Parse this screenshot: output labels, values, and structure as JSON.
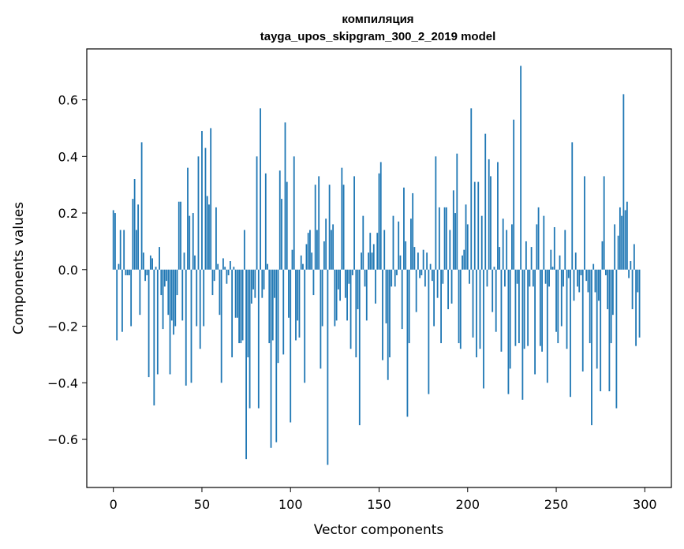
{
  "chart_data": {
    "type": "bar",
    "title": [
      "компиляция",
      "tayga_upos_skipgram_300_2_2019 model"
    ],
    "xlabel": "Vector components",
    "ylabel": "Components values",
    "xlim": [
      -15,
      315
    ],
    "ylim": [
      -0.77,
      0.78
    ],
    "xticks": [
      0,
      50,
      100,
      150,
      200,
      250,
      300
    ],
    "yticks": [
      -0.6,
      -0.4,
      -0.2,
      0.0,
      0.2,
      0.4,
      0.6
    ],
    "ytick_labels": [
      "−0.6",
      "−0.4",
      "−0.2",
      "0.0",
      "0.2",
      "0.4",
      "0.6"
    ],
    "bar_color": "#1f77b4",
    "grid": false,
    "values": [
      0.21,
      0.2,
      -0.25,
      0.02,
      0.14,
      -0.22,
      0.14,
      -0.02,
      -0.02,
      -0.02,
      -0.2,
      0.25,
      0.32,
      0.14,
      0.23,
      -0.16,
      0.45,
      0.06,
      -0.04,
      -0.02,
      -0.38,
      0.05,
      0.04,
      -0.48,
      0.01,
      -0.37,
      0.08,
      -0.09,
      -0.21,
      -0.06,
      -0.04,
      -0.16,
      -0.37,
      -0.18,
      -0.23,
      -0.2,
      -0.09,
      0.24,
      0.24,
      -0.18,
      0.06,
      -0.41,
      0.36,
      0.19,
      -0.4,
      0.2,
      0.05,
      -0.2,
      0.4,
      -0.28,
      0.49,
      -0.2,
      0.43,
      0.26,
      0.23,
      0.5,
      -0.09,
      -0.04,
      0.22,
      0.02,
      -0.16,
      -0.4,
      0.04,
      0.01,
      -0.05,
      -0.02,
      0.03,
      -0.31,
      0.01,
      -0.17,
      -0.17,
      -0.26,
      -0.26,
      -0.25,
      0.14,
      -0.67,
      -0.31,
      -0.49,
      -0.12,
      -0.07,
      -0.1,
      0.4,
      -0.49,
      0.57,
      -0.1,
      -0.07,
      0.34,
      0.02,
      -0.26,
      -0.63,
      -0.25,
      -0.1,
      -0.61,
      -0.33,
      0.35,
      0.25,
      -0.3,
      0.52,
      0.31,
      -0.17,
      -0.54,
      0.07,
      0.4,
      -0.25,
      -0.18,
      -0.24,
      0.05,
      0.02,
      -0.4,
      0.09,
      0.13,
      0.14,
      0.06,
      -0.09,
      0.3,
      0.14,
      0.33,
      -0.35,
      -0.2,
      0.1,
      0.18,
      -0.69,
      0.3,
      0.14,
      0.16,
      -0.2,
      -0.18,
      -0.07,
      -0.11,
      0.36,
      0.3,
      -0.1,
      -0.18,
      -0.05,
      -0.28,
      -0.02,
      0.33,
      -0.31,
      -0.14,
      -0.55,
      0.06,
      0.19,
      -0.06,
      -0.18,
      0.06,
      0.13,
      0.06,
      0.09,
      -0.12,
      0.13,
      0.34,
      0.38,
      -0.32,
      0.14,
      -0.19,
      -0.39,
      -0.31,
      -0.06,
      0.19,
      -0.06,
      -0.02,
      0.17,
      0.05,
      -0.21,
      0.29,
      0.1,
      -0.52,
      -0.26,
      0.18,
      0.27,
      0.08,
      -0.15,
      0.06,
      -0.03,
      -0.02,
      0.07,
      -0.06,
      0.06,
      -0.44,
      0.02,
      -0.04,
      -0.2,
      0.4,
      -0.1,
      0.22,
      -0.26,
      -0.05,
      0.22,
      0.22,
      -0.14,
      0.14,
      -0.12,
      0.28,
      0.2,
      0.41,
      -0.26,
      -0.28,
      0.05,
      0.07,
      0.23,
      0.16,
      -0.05,
      0.57,
      -0.24,
      0.31,
      -0.31,
      0.31,
      -0.28,
      0.19,
      -0.42,
      0.48,
      -0.06,
      0.39,
      0.33,
      -0.15,
      0.01,
      -0.22,
      0.38,
      0.08,
      -0.29,
      0.18,
      -0.06,
      0.14,
      -0.44,
      -0.35,
      0.16,
      0.53,
      -0.27,
      -0.05,
      -0.26,
      0.72,
      -0.46,
      -0.28,
      0.1,
      -0.27,
      -0.06,
      0.08,
      -0.06,
      -0.37,
      0.16,
      0.22,
      -0.27,
      -0.29,
      0.19,
      -0.05,
      -0.4,
      -0.06,
      0.07,
      0.01,
      0.15,
      -0.22,
      -0.26,
      0.05,
      -0.2,
      -0.06,
      0.14,
      -0.28,
      -0.03,
      -0.45,
      0.45,
      -0.11,
      0.06,
      -0.06,
      -0.08,
      -0.02,
      -0.36,
      0.33,
      -0.04,
      -0.08,
      -0.26,
      -0.55,
      0.02,
      -0.08,
      -0.35,
      -0.11,
      -0.43,
      0.1,
      0.33,
      -0.02,
      -0.14,
      -0.43,
      -0.26,
      -0.16,
      0.16,
      -0.49,
      0.12,
      0.22,
      0.19,
      0.62,
      0.21,
      0.24,
      -0.03,
      0.03,
      -0.14,
      0.09,
      -0.27,
      -0.08,
      -0.24
    ]
  }
}
